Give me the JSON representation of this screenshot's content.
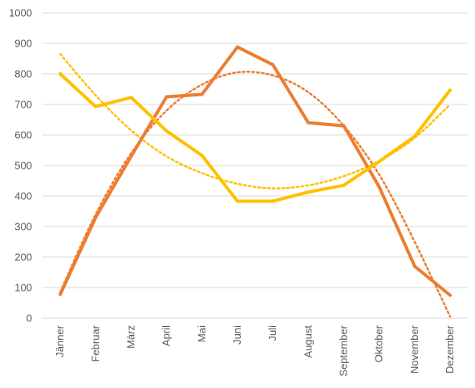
{
  "chart_data": {
    "type": "line",
    "categories": [
      "Jänner",
      "Februar",
      "März",
      "April",
      "Mai",
      "Juni",
      "Juli",
      "August",
      "September",
      "Oktober",
      "November",
      "Dezember"
    ],
    "ylim": [
      0,
      1000
    ],
    "yticks": [
      0,
      100,
      200,
      300,
      400,
      500,
      600,
      700,
      800,
      900,
      1000
    ],
    "grid": true,
    "legend": "none",
    "series": [
      {
        "color": "#ED7D31",
        "values": [
          78,
          330,
          530,
          725,
          733,
          888,
          830,
          640,
          630,
          430,
          170,
          75
        ],
        "trendline": {
          "type": "polynomial",
          "values": [
            85,
            340,
            540,
            680,
            765,
            805,
            795,
            740,
            630,
            470,
            250,
            5
          ]
        }
      },
      {
        "color": "#FFC000",
        "values": [
          800,
          693,
          723,
          613,
          533,
          383,
          383,
          413,
          435,
          513,
          595,
          747
        ],
        "trendline": {
          "type": "polynomial",
          "values": [
            865,
            730,
            615,
            530,
            475,
            440,
            425,
            435,
            465,
            515,
            590,
            700
          ]
        }
      }
    ]
  }
}
